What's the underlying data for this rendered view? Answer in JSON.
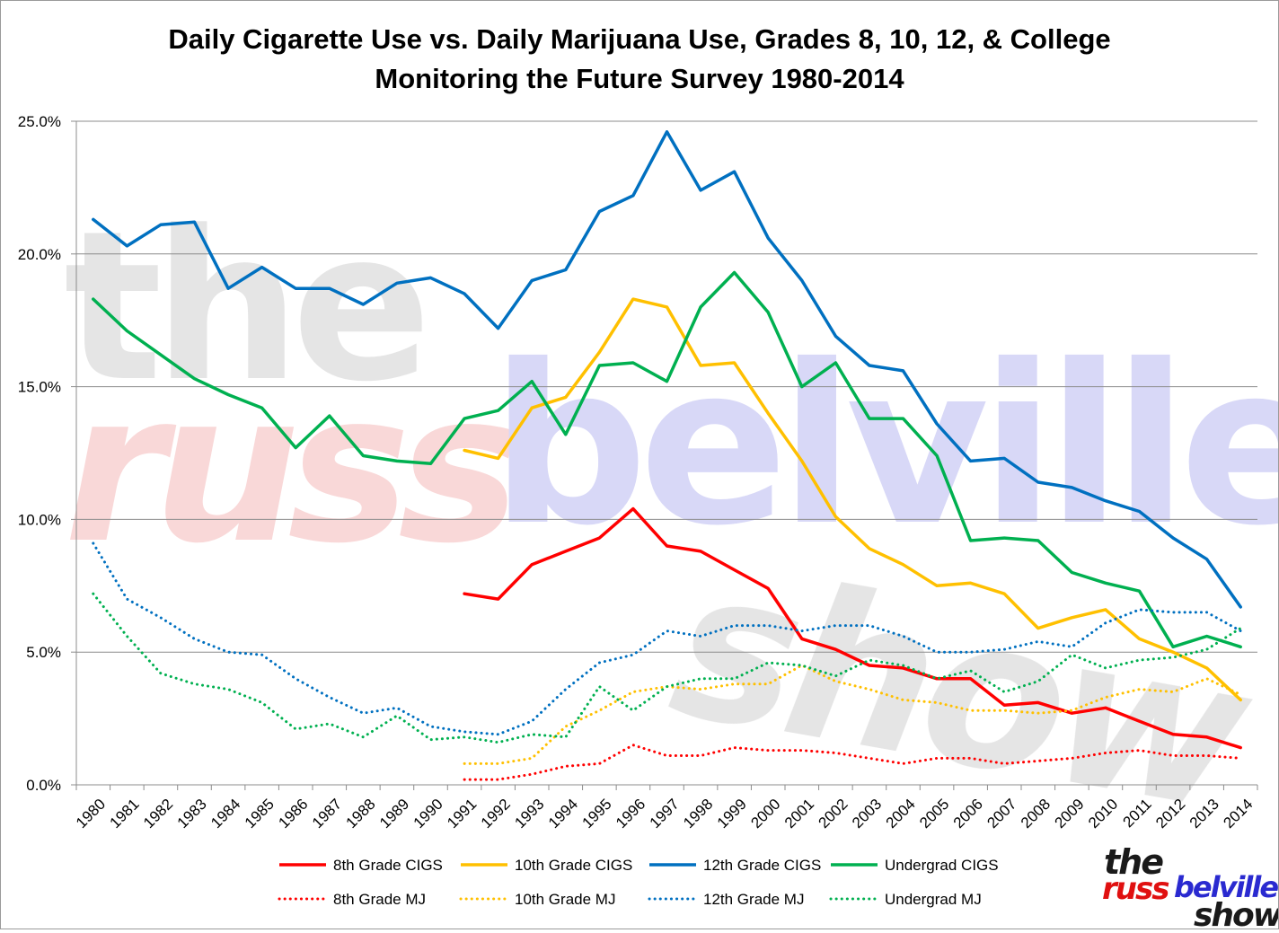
{
  "chart_data": {
    "type": "line",
    "title": "Daily Cigarette Use vs. Daily Marijuana Use, Grades 8, 10, 12, & College",
    "subtitle": "Monitoring the Future Survey 1980-2014",
    "xlabel": "",
    "ylabel": "",
    "ylim": [
      0,
      25
    ],
    "y_ticks": [
      "0.0%",
      "5.0%",
      "10.0%",
      "15.0%",
      "20.0%",
      "25.0%"
    ],
    "grid": "horizontal",
    "legend_position": "bottom",
    "categories": [
      "1980",
      "1981",
      "1982",
      "1983",
      "1984",
      "1985",
      "1986",
      "1987",
      "1988",
      "1989",
      "1990",
      "1991",
      "1992",
      "1993",
      "1994",
      "1995",
      "1996",
      "1997",
      "1998",
      "1999",
      "2000",
      "2001",
      "2002",
      "2003",
      "2004",
      "2005",
      "2006",
      "2007",
      "2008",
      "2009",
      "2010",
      "2011",
      "2012",
      "2013",
      "2014"
    ],
    "series": [
      {
        "name": "8th Grade CIGS",
        "color": "#ff0000",
        "style": "solid",
        "values": [
          null,
          null,
          null,
          null,
          null,
          null,
          null,
          null,
          null,
          null,
          null,
          7.2,
          7.0,
          8.3,
          8.8,
          9.3,
          10.4,
          9.0,
          8.8,
          8.1,
          7.4,
          5.5,
          5.1,
          4.5,
          4.4,
          4.0,
          4.0,
          3.0,
          3.1,
          2.7,
          2.9,
          2.4,
          1.9,
          1.8,
          1.4
        ]
      },
      {
        "name": "10th Grade CIGS",
        "color": "#ffc000",
        "style": "solid",
        "values": [
          null,
          null,
          null,
          null,
          null,
          null,
          null,
          null,
          null,
          null,
          null,
          12.6,
          12.3,
          14.2,
          14.6,
          16.3,
          18.3,
          18.0,
          15.8,
          15.9,
          14.0,
          12.2,
          10.1,
          8.9,
          8.3,
          7.5,
          7.6,
          7.2,
          5.9,
          6.3,
          6.6,
          5.5,
          5.0,
          4.4,
          3.2
        ]
      },
      {
        "name": "12th Grade CIGS",
        "color": "#0070c0",
        "style": "solid",
        "values": [
          21.3,
          20.3,
          21.1,
          21.2,
          18.7,
          19.5,
          18.7,
          18.7,
          18.1,
          18.9,
          19.1,
          18.5,
          17.2,
          19.0,
          19.4,
          21.6,
          22.2,
          24.6,
          22.4,
          23.1,
          20.6,
          19.0,
          16.9,
          15.8,
          15.6,
          13.6,
          12.2,
          12.3,
          11.4,
          11.2,
          10.7,
          10.3,
          9.3,
          8.5,
          6.7
        ]
      },
      {
        "name": "Undergrad CIGS",
        "color": "#00b050",
        "style": "solid",
        "values": [
          18.3,
          17.1,
          16.2,
          15.3,
          14.7,
          14.2,
          12.7,
          13.9,
          12.4,
          12.2,
          12.1,
          13.8,
          14.1,
          15.2,
          13.2,
          15.8,
          15.9,
          15.2,
          18.0,
          19.3,
          17.8,
          15.0,
          15.9,
          13.8,
          13.8,
          12.4,
          9.2,
          9.3,
          9.2,
          8.0,
          7.6,
          7.3,
          5.2,
          5.6,
          5.2
        ]
      },
      {
        "name": "8th Grade MJ",
        "color": "#ff0000",
        "style": "dotted",
        "values": [
          null,
          null,
          null,
          null,
          null,
          null,
          null,
          null,
          null,
          null,
          null,
          0.2,
          0.2,
          0.4,
          0.7,
          0.8,
          1.5,
          1.1,
          1.1,
          1.4,
          1.3,
          1.3,
          1.2,
          1.0,
          0.8,
          1.0,
          1.0,
          0.8,
          0.9,
          1.0,
          1.2,
          1.3,
          1.1,
          1.1,
          1.0
        ]
      },
      {
        "name": "10th Grade MJ",
        "color": "#ffc000",
        "style": "dotted",
        "values": [
          null,
          null,
          null,
          null,
          null,
          null,
          null,
          null,
          null,
          null,
          null,
          0.8,
          0.8,
          1.0,
          2.2,
          2.8,
          3.5,
          3.7,
          3.6,
          3.8,
          3.8,
          4.5,
          3.9,
          3.6,
          3.2,
          3.1,
          2.8,
          2.8,
          2.7,
          2.8,
          3.3,
          3.6,
          3.5,
          4.0,
          3.4
        ]
      },
      {
        "name": "12th Grade MJ",
        "color": "#0070c0",
        "style": "dotted",
        "values": [
          9.1,
          7.0,
          6.3,
          5.5,
          5.0,
          4.9,
          4.0,
          3.3,
          2.7,
          2.9,
          2.2,
          2.0,
          1.9,
          2.4,
          3.6,
          4.6,
          4.9,
          5.8,
          5.6,
          6.0,
          6.0,
          5.8,
          6.0,
          6.0,
          5.6,
          5.0,
          5.0,
          5.1,
          5.4,
          5.2,
          6.1,
          6.6,
          6.5,
          6.5,
          5.8
        ]
      },
      {
        "name": "Undergrad MJ",
        "color": "#00b050",
        "style": "dotted",
        "values": [
          7.2,
          5.6,
          4.2,
          3.8,
          3.6,
          3.1,
          2.1,
          2.3,
          1.8,
          2.6,
          1.7,
          1.8,
          1.6,
          1.9,
          1.8,
          3.7,
          2.8,
          3.7,
          4.0,
          4.0,
          4.6,
          4.5,
          4.1,
          4.7,
          4.5,
          4.0,
          4.3,
          3.5,
          3.9,
          4.9,
          4.4,
          4.7,
          4.8,
          5.1,
          5.9
        ]
      }
    ]
  },
  "watermark": {
    "line1": "the",
    "line2_a": "russ",
    "line2_b": "belville",
    "line3": "show",
    "colors": {
      "the": "#d0d0d0",
      "russ": "#f4b8b8",
      "belville": "#b8b8f0",
      "show": "#d0d0d0"
    }
  },
  "logo": {
    "line1": "the",
    "line2_a": "russ",
    "line2_b": "belville",
    "line3": "show",
    "colors": {
      "dark": "#1a1a1a",
      "russ": "#e01010",
      "belville": "#2a2ad0"
    }
  }
}
